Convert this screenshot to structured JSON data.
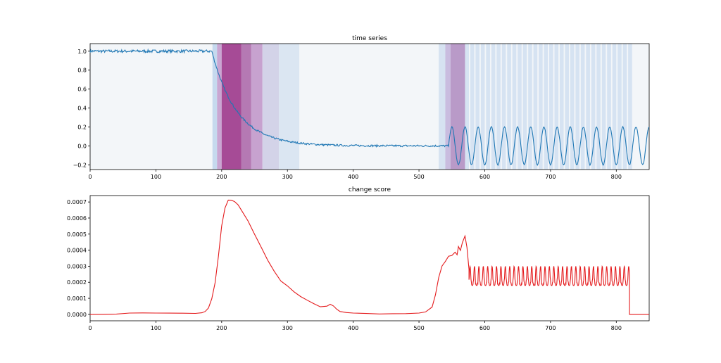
{
  "chart_data": [
    {
      "type": "line",
      "title": "time series",
      "xlabel": "",
      "ylabel": "",
      "xlim": [
        0,
        850
      ],
      "ylim": [
        -0.25,
        1.08
      ],
      "xticks": [
        0,
        100,
        200,
        300,
        400,
        500,
        600,
        700,
        800
      ],
      "yticks": [
        -0.2,
        0.0,
        0.2,
        0.4,
        0.6,
        0.8,
        1.0
      ],
      "ytick_labels": [
        "−0.2",
        "0.0",
        "0.2",
        "0.4",
        "0.6",
        "0.8",
        "1.0"
      ],
      "grid": false,
      "series": [
        {
          "color": "#1f77b4",
          "segments": [
            {
              "x_from": 0,
              "x_to": 185,
              "shape": "flat",
              "level": 1.0
            },
            {
              "x_from": 185,
              "x_to": 545,
              "shape": "exponential_decay",
              "from": 1.0,
              "to": 0.0
            },
            {
              "x_from": 545,
              "x_to": 850,
              "shape": "sine",
              "amplitude": 0.2,
              "period": 20
            }
          ]
        }
      ],
      "shaded_regions": [
        {
          "x0": 186,
          "x1": 193,
          "color": "#c6d9ee"
        },
        {
          "x0": 193,
          "x1": 200,
          "color": "#c9a6d2"
        },
        {
          "x0": 200,
          "x1": 230,
          "color": "#a64b96"
        },
        {
          "x0": 230,
          "x1": 245,
          "color": "#b579b3"
        },
        {
          "x0": 245,
          "x1": 262,
          "color": "#c7a2cf"
        },
        {
          "x0": 262,
          "x1": 287,
          "color": "#d3d3e8"
        },
        {
          "x0": 287,
          "x1": 318,
          "color": "#dbe6f2"
        },
        {
          "x0": 530,
          "x1": 540,
          "color": "#d6e2f1"
        },
        {
          "x0": 540,
          "x1": 548,
          "color": "#c9bcdf"
        },
        {
          "x0": 548,
          "x1": 570,
          "color": "#b99ac8"
        },
        {
          "x0": 570,
          "x1": 820,
          "color": "#d6e3f2",
          "striped": true,
          "stripe_period": 8
        }
      ]
    },
    {
      "type": "line",
      "title": "change score",
      "xlabel": "",
      "ylabel": "",
      "xlim": [
        0,
        850
      ],
      "ylim": [
        -4e-05,
        0.00074
      ],
      "xticks": [
        0,
        100,
        200,
        300,
        400,
        500,
        600,
        700,
        800
      ],
      "yticks": [
        0.0,
        0.0001,
        0.0002,
        0.0003,
        0.0004,
        0.0005,
        0.0006,
        0.0007
      ],
      "ytick_labels": [
        "0.0000",
        "0.0001",
        "0.0002",
        "0.0003",
        "0.0004",
        "0.0005",
        "0.0006",
        "0.0007"
      ],
      "grid": false,
      "series": [
        {
          "color": "#e41a1c",
          "x": [
            0,
            20,
            40,
            60,
            80,
            100,
            120,
            140,
            160,
            170,
            175,
            180,
            185,
            190,
            195,
            200,
            205,
            210,
            215,
            220,
            225,
            230,
            240,
            250,
            260,
            270,
            280,
            290,
            300,
            310,
            320,
            330,
            340,
            350,
            360,
            365,
            370,
            375,
            380,
            390,
            400,
            420,
            440,
            460,
            480,
            500,
            510,
            520,
            525,
            530,
            535,
            540,
            545,
            550,
            555,
            558,
            560,
            563,
            566,
            570,
            573,
            576
          ],
          "values": [
            0.0,
            0.0,
            5e-06,
            8e-06,
            1.2e-05,
            8e-06,
            8e-06,
            8e-06,
            8e-06,
            1e-05,
            2e-05,
            4e-05,
            0.0001,
            0.0002,
            0.00036,
            0.00055,
            0.00066,
            0.00071,
            0.00071,
            0.0007,
            0.00068,
            0.00065,
            0.00058,
            0.0005,
            0.00042,
            0.00034,
            0.00027,
            0.00021,
            0.00018,
            0.00014,
            0.00011,
            9e-05,
            7e-05,
            5e-05,
            5e-05,
            6e-05,
            5e-05,
            3e-05,
            1.5e-05,
            1e-05,
            8e-06,
            5e-06,
            5e-06,
            5e-06,
            5e-06,
            8e-06,
            1.5e-05,
            4.5e-05,
            0.00012,
            0.00023,
            0.0003,
            0.00033,
            0.00036,
            0.00037,
            0.00039,
            0.00037,
            0.00042,
            0.0004,
            0.00045,
            0.00049,
            0.00042,
            0.00028
          ],
          "oscillation": {
            "x_from": 576,
            "x_to": 820,
            "low": 0.00018,
            "high": 0.0003,
            "period": 6.7
          },
          "tail": {
            "x_drop": 820,
            "level_after": 0.0
          }
        }
      ]
    }
  ]
}
